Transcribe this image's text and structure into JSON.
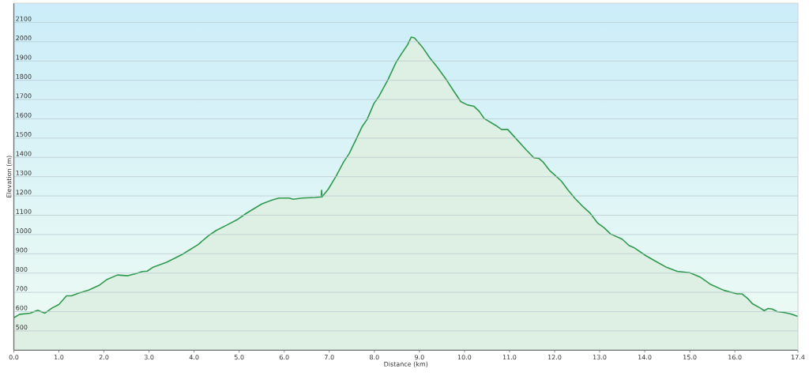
{
  "chart_data": {
    "type": "area",
    "xlabel": "Distance (km)",
    "ylabel": "Elevation (m)",
    "x": [
      0.0,
      0.13,
      0.36,
      0.53,
      0.69,
      0.85,
      1.0,
      1.08,
      1.17,
      1.28,
      1.43,
      1.66,
      1.89,
      2.07,
      2.3,
      2.53,
      2.7,
      2.85,
      2.96,
      3.08,
      3.39,
      3.74,
      4.09,
      4.32,
      4.49,
      4.72,
      4.95,
      5.16,
      5.5,
      5.73,
      5.88,
      6.11,
      6.2,
      6.4,
      6.69,
      6.82,
      6.83,
      6.84,
      6.98,
      7.15,
      7.32,
      7.44,
      7.61,
      7.73,
      7.84,
      7.99,
      8.1,
      8.3,
      8.48,
      8.59,
      8.74,
      8.82,
      8.89,
      9.06,
      9.23,
      9.4,
      9.58,
      9.75,
      9.92,
      10.07,
      10.21,
      10.33,
      10.44,
      10.7,
      10.82,
      10.96,
      11.13,
      11.37,
      11.54,
      11.65,
      11.74,
      11.89,
      12.0,
      12.15,
      12.29,
      12.46,
      12.64,
      12.78,
      12.96,
      13.1,
      13.24,
      13.5,
      13.65,
      13.76,
      14.02,
      14.25,
      14.49,
      14.72,
      15.0,
      15.24,
      15.47,
      15.76,
      16.05,
      16.16,
      16.28,
      16.39,
      16.56,
      16.65,
      16.74,
      16.83,
      16.94,
      17.08,
      17.23,
      17.32,
      17.4
    ],
    "values": [
      568,
      586,
      592,
      607,
      592,
      619,
      637,
      658,
      682,
      682,
      695,
      712,
      736,
      767,
      790,
      786,
      797,
      808,
      810,
      829,
      856,
      897,
      948,
      994,
      1021,
      1048,
      1076,
      1110,
      1158,
      1179,
      1189,
      1189,
      1183,
      1189,
      1192,
      1195,
      1230,
      1195,
      1236,
      1302,
      1377,
      1419,
      1501,
      1560,
      1597,
      1679,
      1716,
      1802,
      1892,
      1933,
      1985,
      2024,
      2020,
      1974,
      1916,
      1867,
      1809,
      1748,
      1689,
      1672,
      1665,
      1638,
      1601,
      1565,
      1545,
      1545,
      1501,
      1439,
      1398,
      1395,
      1377,
      1332,
      1309,
      1277,
      1233,
      1185,
      1142,
      1113,
      1058,
      1035,
      1003,
      976,
      943,
      932,
      891,
      860,
      829,
      809,
      802,
      778,
      740,
      710,
      692,
      692,
      669,
      641,
      619,
      605,
      616,
      613,
      600,
      596,
      589,
      582,
      575
    ],
    "color": "#2f9a4f",
    "xlim": [
      0,
      17.4
    ],
    "ylim": [
      400,
      2200
    ],
    "xticks": [
      {
        "value": 0,
        "label": "0.0"
      },
      {
        "value": 1,
        "label": "1.0"
      },
      {
        "value": 2,
        "label": "2.0"
      },
      {
        "value": 3,
        "label": "3.0"
      },
      {
        "value": 4,
        "label": "4.0"
      },
      {
        "value": 5,
        "label": "5.0"
      },
      {
        "value": 6,
        "label": "6.0"
      },
      {
        "value": 7,
        "label": "7.0"
      },
      {
        "value": 8,
        "label": "8.0"
      },
      {
        "value": 9,
        "label": "9.0"
      },
      {
        "value": 10,
        "label": "10.0"
      },
      {
        "value": 11,
        "label": "11.0"
      },
      {
        "value": 12,
        "label": "12.0"
      },
      {
        "value": 13,
        "label": "13.0"
      },
      {
        "value": 14,
        "label": "14.0"
      },
      {
        "value": 15,
        "label": "15.0"
      },
      {
        "value": 16,
        "label": "16.0"
      },
      {
        "value": 17.4,
        "label": "17.4"
      }
    ],
    "yticks": [
      500,
      600,
      700,
      800,
      900,
      1000,
      1100,
      1200,
      1300,
      1400,
      1500,
      1600,
      1700,
      1800,
      1900,
      2000,
      2100
    ],
    "grid": "y"
  }
}
